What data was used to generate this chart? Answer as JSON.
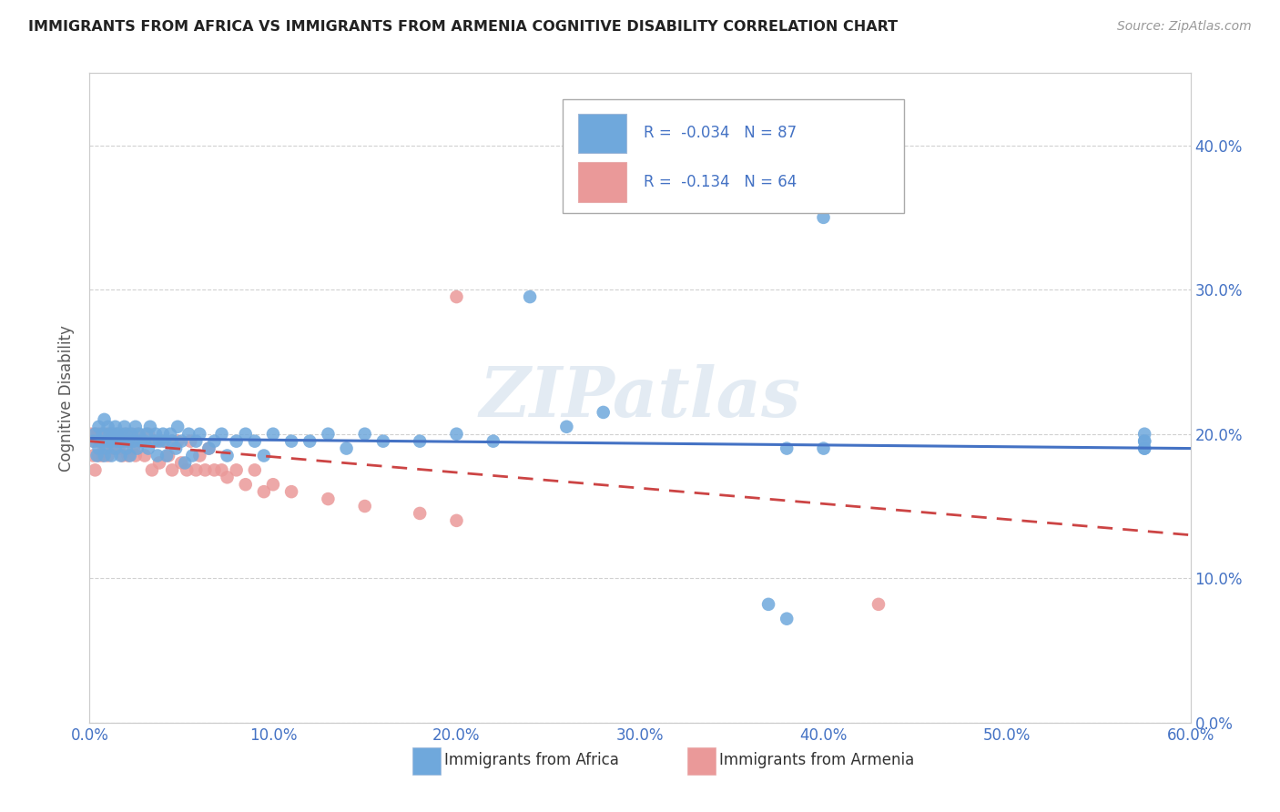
{
  "title": "IMMIGRANTS FROM AFRICA VS IMMIGRANTS FROM ARMENIA COGNITIVE DISABILITY CORRELATION CHART",
  "source": "Source: ZipAtlas.com",
  "ylabel": "Cognitive Disability",
  "legend_label_1": "Immigrants from Africa",
  "legend_label_2": "Immigrants from Armenia",
  "R1": -0.034,
  "N1": 87,
  "R2": -0.134,
  "N2": 64,
  "xlim": [
    0.0,
    0.6
  ],
  "ylim": [
    0.0,
    0.45
  ],
  "xticks": [
    0.0,
    0.1,
    0.2,
    0.3,
    0.4,
    0.5,
    0.6
  ],
  "yticks": [
    0.0,
    0.1,
    0.2,
    0.3,
    0.4
  ],
  "color_africa": "#6fa8dc",
  "color_armenia": "#ea9999",
  "color_africa_line": "#4472c4",
  "color_armenia_line": "#cc4444",
  "background_color": "#ffffff",
  "grid_color": "#cccccc",
  "title_color": "#222222",
  "axis_label_color": "#595959",
  "tick_color": "#4472c4",
  "watermark": "ZIPatlas",
  "africa_x": [
    0.002,
    0.003,
    0.004,
    0.005,
    0.005,
    0.006,
    0.007,
    0.008,
    0.008,
    0.009,
    0.01,
    0.01,
    0.011,
    0.012,
    0.012,
    0.013,
    0.014,
    0.014,
    0.015,
    0.015,
    0.016,
    0.017,
    0.017,
    0.018,
    0.019,
    0.02,
    0.02,
    0.021,
    0.022,
    0.023,
    0.024,
    0.025,
    0.026,
    0.027,
    0.028,
    0.03,
    0.031,
    0.032,
    0.033,
    0.035,
    0.036,
    0.037,
    0.038,
    0.04,
    0.041,
    0.042,
    0.044,
    0.045,
    0.047,
    0.048,
    0.05,
    0.052,
    0.054,
    0.056,
    0.058,
    0.06,
    0.065,
    0.068,
    0.072,
    0.075,
    0.08,
    0.085,
    0.09,
    0.095,
    0.1,
    0.11,
    0.12,
    0.13,
    0.14,
    0.15,
    0.16,
    0.18,
    0.2,
    0.22,
    0.24,
    0.26,
    0.28,
    0.37,
    0.38,
    0.38,
    0.4,
    0.4,
    0.575,
    0.575,
    0.575,
    0.575,
    0.575
  ],
  "africa_y": [
    0.195,
    0.2,
    0.185,
    0.19,
    0.205,
    0.195,
    0.2,
    0.185,
    0.21,
    0.19,
    0.195,
    0.205,
    0.2,
    0.185,
    0.195,
    0.2,
    0.19,
    0.205,
    0.195,
    0.2,
    0.195,
    0.185,
    0.2,
    0.195,
    0.205,
    0.19,
    0.2,
    0.195,
    0.185,
    0.2,
    0.195,
    0.205,
    0.19,
    0.2,
    0.195,
    0.195,
    0.2,
    0.19,
    0.205,
    0.195,
    0.2,
    0.185,
    0.195,
    0.2,
    0.195,
    0.185,
    0.2,
    0.195,
    0.19,
    0.205,
    0.195,
    0.18,
    0.2,
    0.185,
    0.195,
    0.2,
    0.19,
    0.195,
    0.2,
    0.185,
    0.195,
    0.2,
    0.195,
    0.185,
    0.2,
    0.195,
    0.195,
    0.2,
    0.19,
    0.2,
    0.195,
    0.195,
    0.2,
    0.195,
    0.295,
    0.205,
    0.215,
    0.082,
    0.072,
    0.19,
    0.19,
    0.35,
    0.19,
    0.195,
    0.2,
    0.19,
    0.195
  ],
  "armenia_x": [
    0.001,
    0.002,
    0.002,
    0.003,
    0.003,
    0.004,
    0.005,
    0.005,
    0.006,
    0.007,
    0.007,
    0.008,
    0.008,
    0.009,
    0.01,
    0.01,
    0.011,
    0.012,
    0.013,
    0.014,
    0.015,
    0.016,
    0.017,
    0.018,
    0.019,
    0.02,
    0.021,
    0.022,
    0.023,
    0.024,
    0.025,
    0.026,
    0.028,
    0.03,
    0.032,
    0.034,
    0.036,
    0.038,
    0.04,
    0.043,
    0.045,
    0.048,
    0.05,
    0.053,
    0.055,
    0.058,
    0.06,
    0.063,
    0.065,
    0.068,
    0.072,
    0.075,
    0.08,
    0.085,
    0.09,
    0.095,
    0.1,
    0.11,
    0.13,
    0.15,
    0.18,
    0.2,
    0.43,
    0.2
  ],
  "armenia_y": [
    0.2,
    0.195,
    0.185,
    0.2,
    0.175,
    0.195,
    0.2,
    0.185,
    0.195,
    0.2,
    0.185,
    0.2,
    0.19,
    0.195,
    0.2,
    0.185,
    0.195,
    0.2,
    0.19,
    0.195,
    0.2,
    0.19,
    0.195,
    0.185,
    0.2,
    0.195,
    0.185,
    0.2,
    0.195,
    0.19,
    0.185,
    0.2,
    0.195,
    0.185,
    0.2,
    0.175,
    0.195,
    0.18,
    0.195,
    0.185,
    0.175,
    0.195,
    0.18,
    0.175,
    0.195,
    0.175,
    0.185,
    0.175,
    0.19,
    0.175,
    0.175,
    0.17,
    0.175,
    0.165,
    0.175,
    0.16,
    0.165,
    0.16,
    0.155,
    0.15,
    0.145,
    0.14,
    0.082,
    0.295
  ],
  "africa_trend_x": [
    0.0,
    0.6
  ],
  "africa_trend_y": [
    0.197,
    0.19
  ],
  "armenia_trend_x": [
    0.0,
    0.6
  ],
  "armenia_trend_y": [
    0.195,
    0.13
  ]
}
